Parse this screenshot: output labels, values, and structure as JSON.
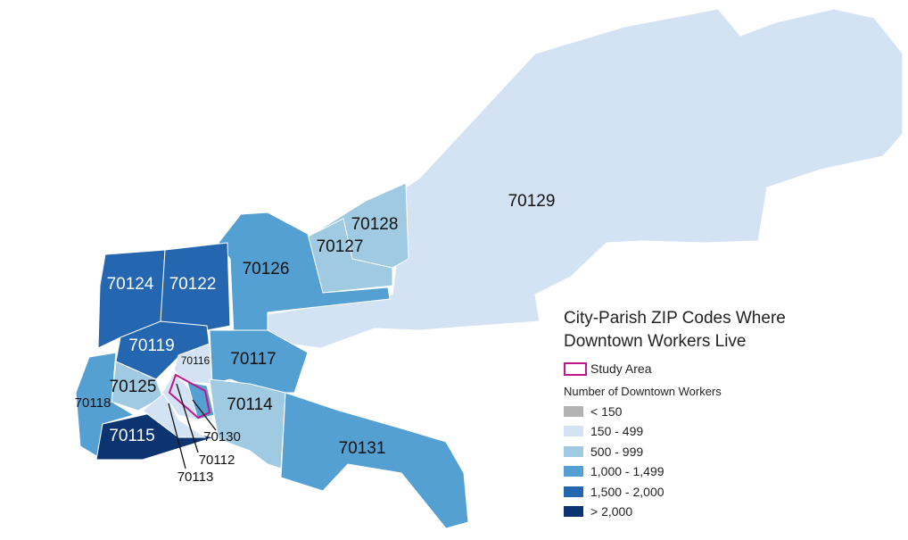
{
  "title": "City-Parish ZIP Codes Where Downtown Workers Live",
  "legend": {
    "study_area": "Study Area",
    "subtitle": "Number of Downtown Workers",
    "study_area_color": "#c0168c",
    "classes": [
      {
        "label": "< 150",
        "color": "#b3b3b3"
      },
      {
        "label": "150 - 499",
        "color": "#d3e3f4"
      },
      {
        "label": "500 - 999",
        "color": "#9fcae2"
      },
      {
        "label": "1,000 - 1,499",
        "color": "#55a0d2"
      },
      {
        "label": "1,500 - 2,000",
        "color": "#2467b0"
      },
      {
        "label": "> 2,000",
        "color": "#0b3470"
      }
    ]
  },
  "zips": [
    {
      "label": "70129",
      "class": 1
    },
    {
      "label": "70128",
      "class": 2
    },
    {
      "label": "70127",
      "class": 2
    },
    {
      "label": "70126",
      "class": 3
    },
    {
      "label": "70124",
      "class": 4
    },
    {
      "label": "70122",
      "class": 4
    },
    {
      "label": "70119",
      "class": 4
    },
    {
      "label": "70116",
      "class": 1
    },
    {
      "label": "70117",
      "class": 3
    },
    {
      "label": "70125",
      "class": 2
    },
    {
      "label": "70118",
      "class": 3
    },
    {
      "label": "70115",
      "class": 5
    },
    {
      "label": "70113",
      "class": 1
    },
    {
      "label": "70112",
      "class": 1
    },
    {
      "label": "70130",
      "class": 3
    },
    {
      "label": "70114",
      "class": 2
    },
    {
      "label": "70131",
      "class": 3
    }
  ]
}
